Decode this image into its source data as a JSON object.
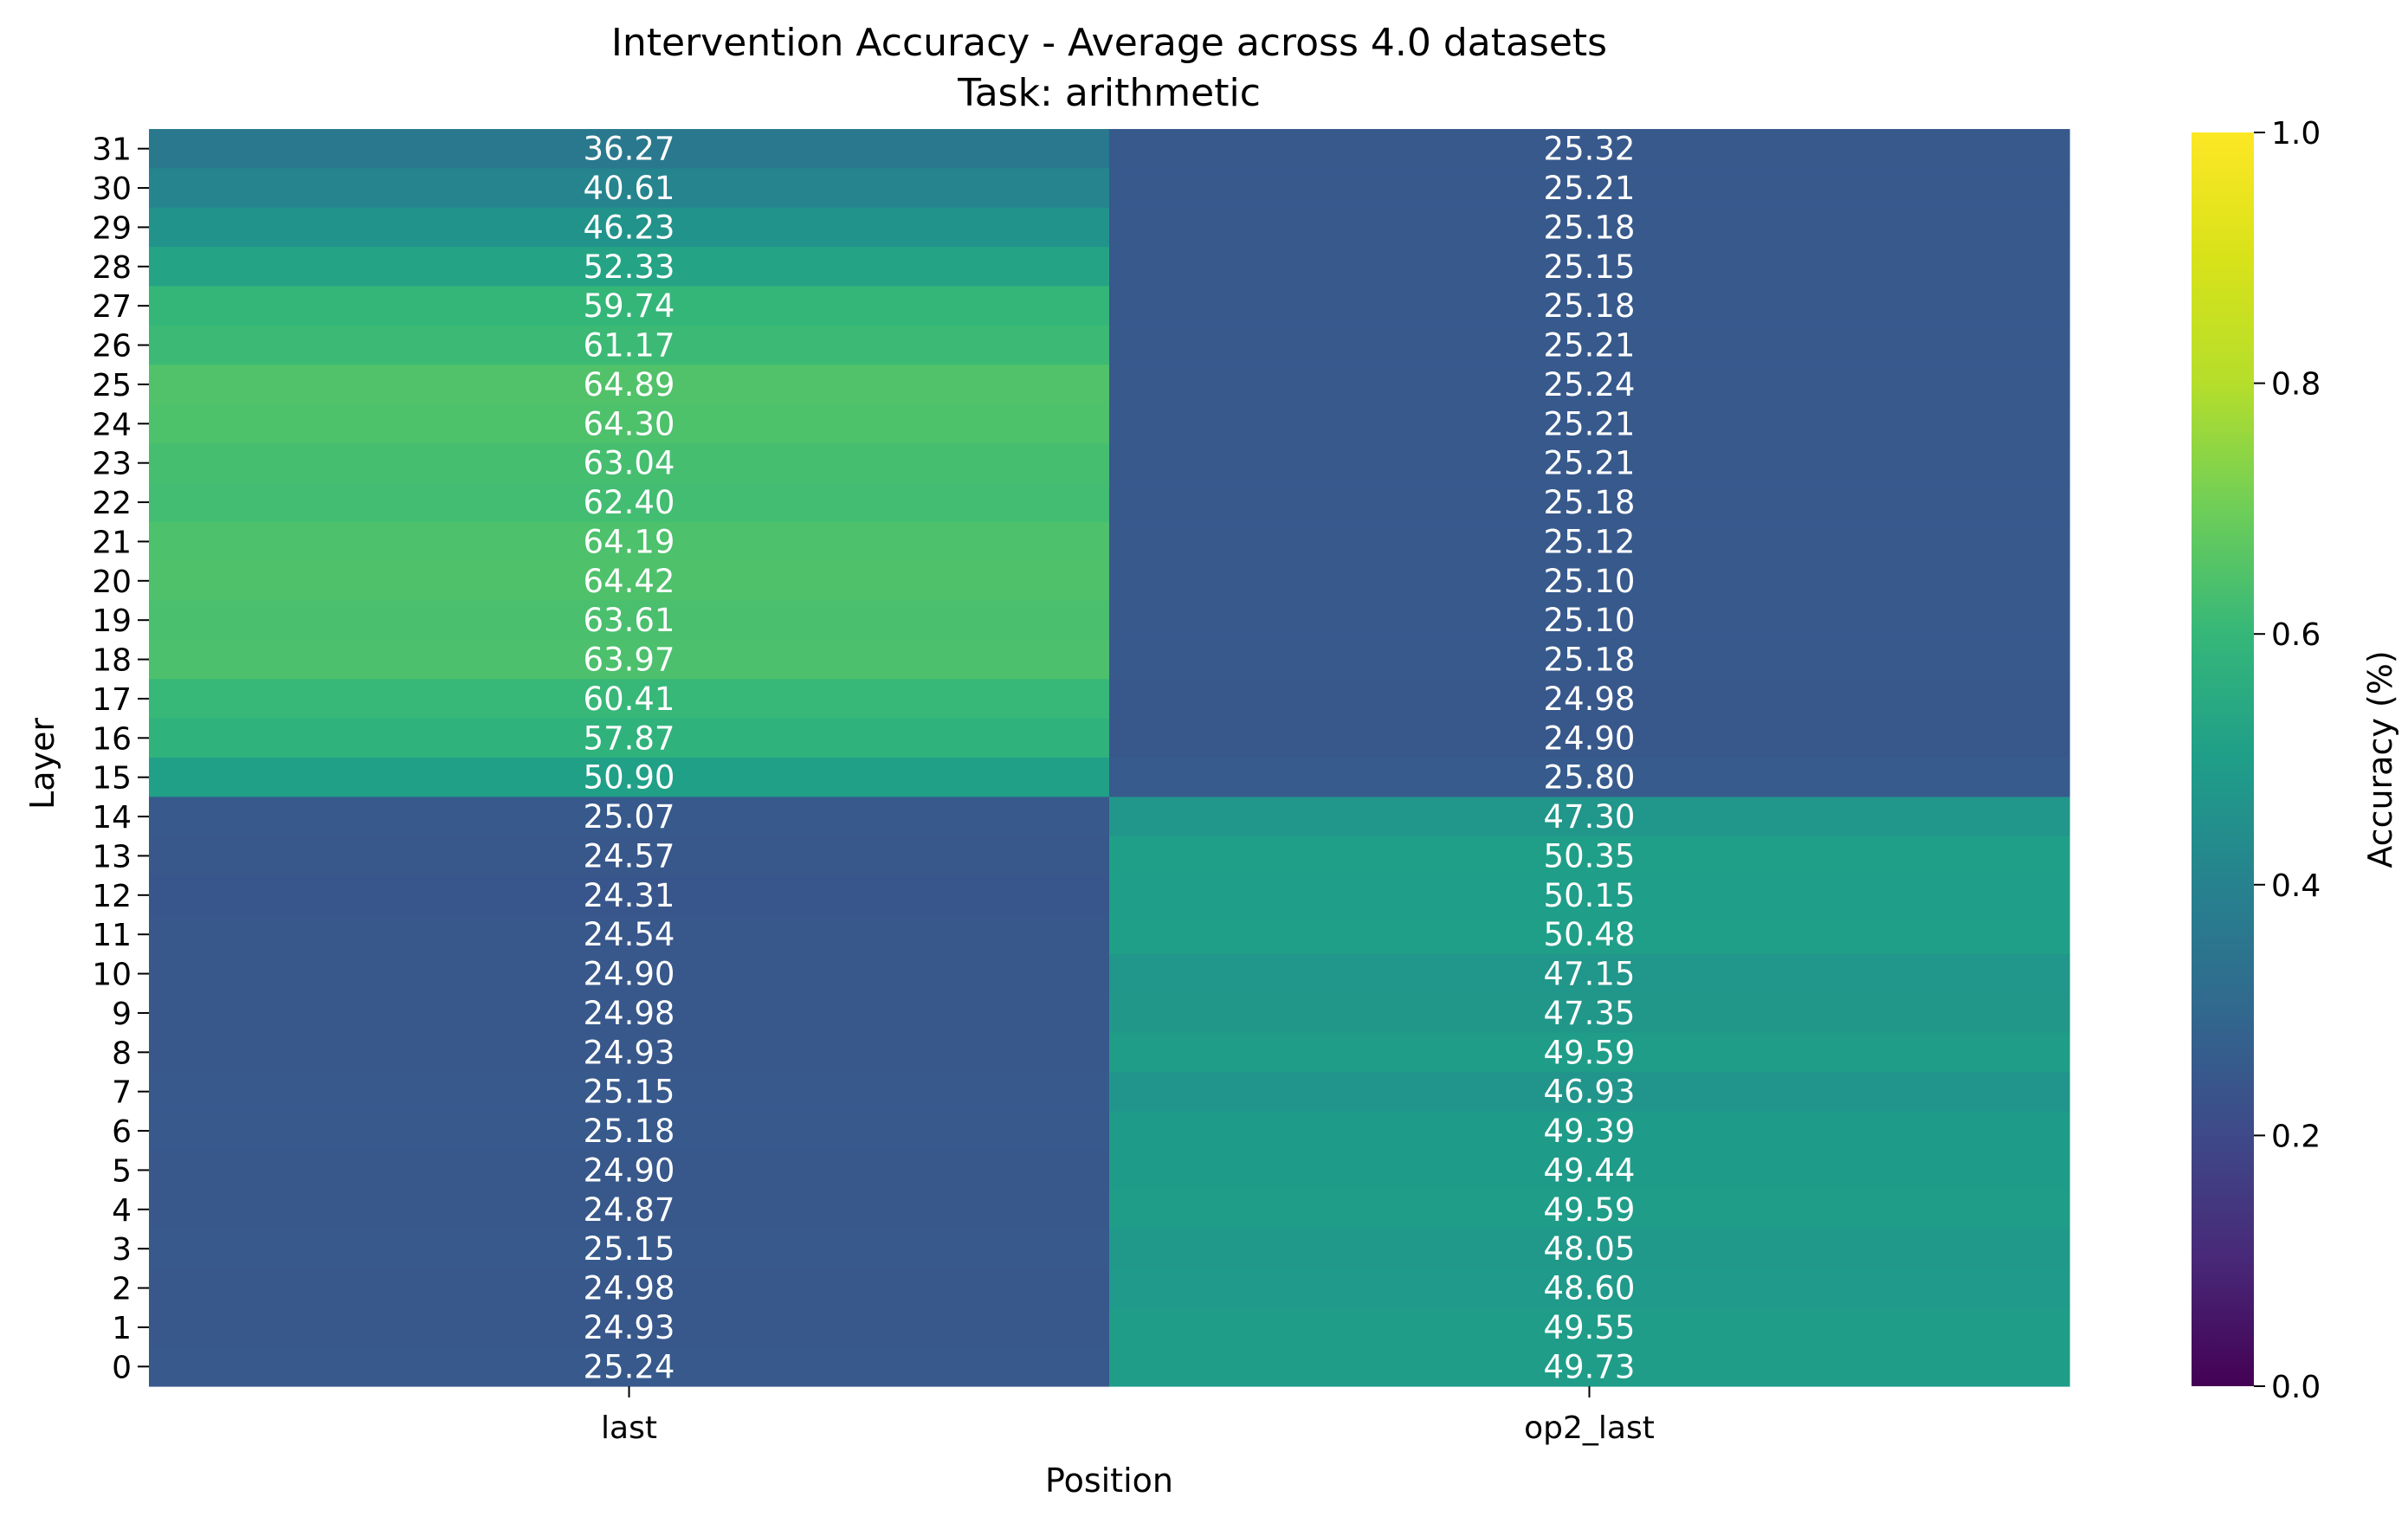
{
  "chart_data": {
    "type": "heatmap",
    "title": "Intervention Accuracy - Average across 4.0 datasets",
    "subtitle": "Task: arithmetic",
    "xlabel": "Position",
    "ylabel": "Layer",
    "x_categories": [
      "last",
      "op2_last"
    ],
    "y_categories": [
      "31",
      "30",
      "29",
      "28",
      "27",
      "26",
      "25",
      "24",
      "23",
      "22",
      "21",
      "20",
      "19",
      "18",
      "17",
      "16",
      "15",
      "14",
      "13",
      "12",
      "11",
      "10",
      "9",
      "8",
      "7",
      "6",
      "5",
      "4",
      "3",
      "2",
      "1",
      "0"
    ],
    "values": {
      "last": [
        36.27,
        40.61,
        46.23,
        52.33,
        59.74,
        61.17,
        64.89,
        64.3,
        63.04,
        62.4,
        64.19,
        64.42,
        63.61,
        63.97,
        60.41,
        57.87,
        50.9,
        25.07,
        24.57,
        24.31,
        24.54,
        24.9,
        24.98,
        24.93,
        25.15,
        25.18,
        24.9,
        24.87,
        25.15,
        24.98,
        24.93,
        25.24
      ],
      "op2_last": [
        25.32,
        25.21,
        25.18,
        25.15,
        25.18,
        25.21,
        25.24,
        25.21,
        25.21,
        25.18,
        25.12,
        25.1,
        25.1,
        25.18,
        24.98,
        24.9,
        25.8,
        47.3,
        50.35,
        50.15,
        50.48,
        47.15,
        47.35,
        49.59,
        46.93,
        49.39,
        49.44,
        49.59,
        48.05,
        48.6,
        49.55,
        49.73
      ]
    },
    "colorbar": {
      "label": "Accuracy (%)",
      "range": [
        0.0,
        1.0
      ],
      "ticks": [
        "0.0",
        "0.2",
        "0.4",
        "0.6",
        "0.8",
        "1.0"
      ],
      "colormap": "viridis"
    },
    "grid": false,
    "legend": "colorbar-right"
  }
}
